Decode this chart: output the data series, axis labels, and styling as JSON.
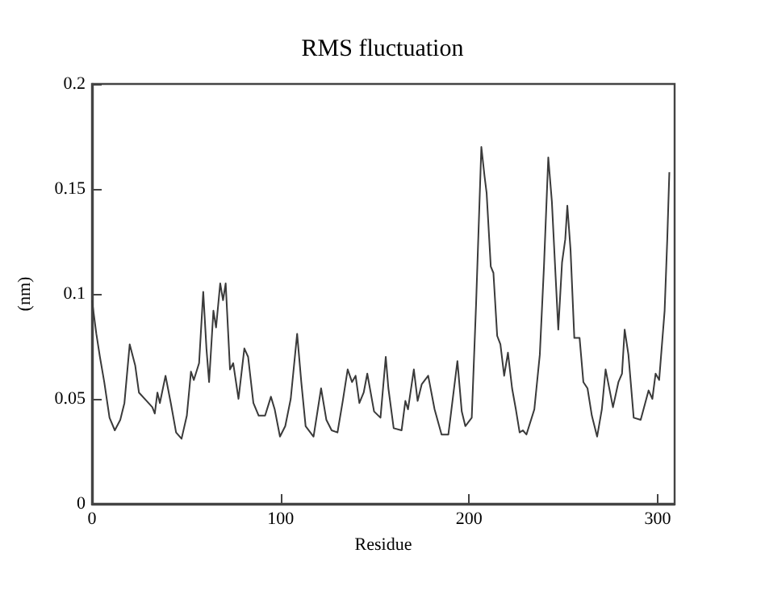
{
  "chart_data": {
    "type": "line",
    "title": "RMS fluctuation",
    "xlabel": "Residue",
    "ylabel": "(nm)",
    "xlim": [
      0,
      309
    ],
    "xticks": [
      0,
      100,
      200,
      300
    ],
    "ylim": [
      0,
      0.2
    ],
    "yticks": [
      0,
      0.05,
      0.1,
      0.15,
      0.2
    ],
    "grid": false,
    "marker": "none",
    "line_style": "solid",
    "series": [
      {
        "color": "#3a3a3a",
        "x": [
          0,
          2.3,
          4.2,
          6.5,
          9.3,
          12.1,
          15,
          17.2,
          20,
          22.9,
          24.9,
          29,
          32,
          33.3,
          34.7,
          36,
          39,
          41.8,
          44.6,
          47.5,
          50.3,
          52.5,
          54,
          55.4,
          56.8,
          59,
          60.7,
          62.1,
          64.4,
          65.8,
          68,
          69.5,
          70.9,
          73.2,
          74.9,
          77.7,
          80.8,
          82.8,
          85.6,
          88.4,
          91.8,
          94.9,
          96.9,
          99.7,
          102.5,
          105.4,
          108.8,
          111,
          113.3,
          117.5,
          121.5,
          124.3,
          127.1,
          130.2,
          133,
          135.6,
          137.9,
          139.8,
          141.8,
          144.1,
          146,
          149.6,
          153,
          155.8,
          157.2,
          160,
          164.2,
          166.2,
          167.6,
          170.7,
          172.7,
          174.9,
          178.3,
          181.7,
          185.4,
          189,
          193.8,
          196.1,
          198,
          201.4,
          203.7,
          206.5,
          208.2,
          209.3,
          211.5,
          212.9,
          214.9,
          216.6,
          218.6,
          220.6,
          222.8,
          224.8,
          226.8,
          228.5,
          230.4,
          234.6,
          237.5,
          239.7,
          242,
          243.9,
          245.9,
          247.3,
          249.3,
          251,
          252.1,
          253.8,
          255.8,
          258.6,
          260.6,
          262.8,
          265.1,
          267.9,
          270.4,
          272.4,
          276.3,
          279.2,
          281.1,
          282.5,
          284.5,
          287.3,
          291,
          295.2,
          297.2,
          298.9,
          300.8,
          303.7,
          305.1,
          306.2
        ],
        "values": [
          0.097,
          0.081,
          0.07,
          0.058,
          0.041,
          0.035,
          0.04,
          0.048,
          0.076,
          0.066,
          0.053,
          0.049,
          0.046,
          0.043,
          0.053,
          0.048,
          0.061,
          0.048,
          0.034,
          0.031,
          0.042,
          0.063,
          0.059,
          0.063,
          0.067,
          0.101,
          0.074,
          0.058,
          0.092,
          0.084,
          0.105,
          0.097,
          0.105,
          0.064,
          0.067,
          0.05,
          0.074,
          0.07,
          0.048,
          0.042,
          0.042,
          0.051,
          0.045,
          0.032,
          0.037,
          0.05,
          0.081,
          0.058,
          0.037,
          0.032,
          0.055,
          0.04,
          0.035,
          0.034,
          0.049,
          0.064,
          0.058,
          0.061,
          0.048,
          0.053,
          0.062,
          0.044,
          0.041,
          0.07,
          0.055,
          0.036,
          0.035,
          0.049,
          0.045,
          0.064,
          0.049,
          0.057,
          0.061,
          0.045,
          0.033,
          0.033,
          0.068,
          0.044,
          0.037,
          0.041,
          0.095,
          0.17,
          0.156,
          0.148,
          0.113,
          0.11,
          0.08,
          0.076,
          0.061,
          0.072,
          0.055,
          0.045,
          0.034,
          0.035,
          0.033,
          0.045,
          0.071,
          0.113,
          0.165,
          0.144,
          0.108,
          0.083,
          0.115,
          0.126,
          0.142,
          0.121,
          0.079,
          0.079,
          0.058,
          0.055,
          0.042,
          0.032,
          0.045,
          0.064,
          0.046,
          0.058,
          0.062,
          0.083,
          0.071,
          0.041,
          0.04,
          0.054,
          0.05,
          0.062,
          0.059,
          0.092,
          0.126,
          0.158
        ]
      }
    ]
  }
}
